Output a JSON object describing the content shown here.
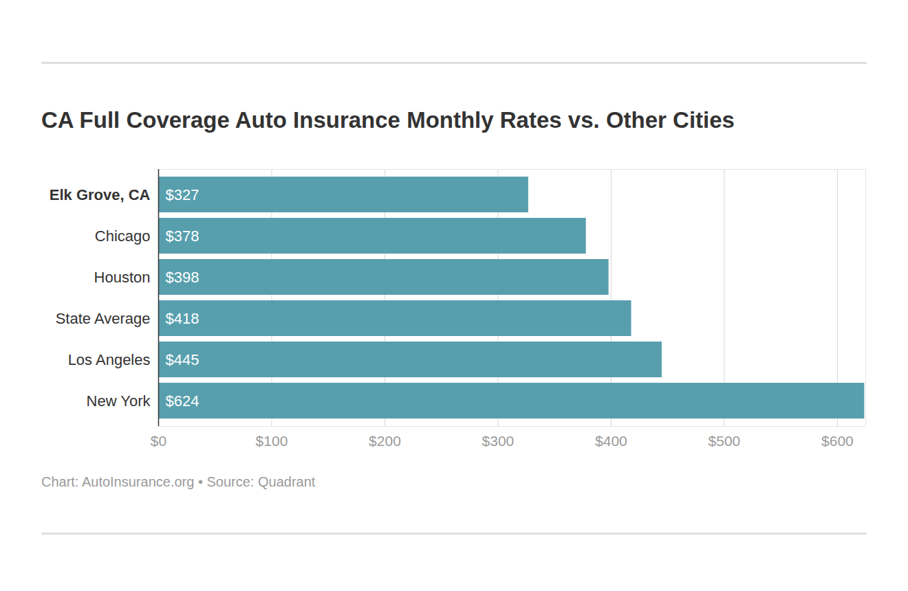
{
  "chart_data": {
    "type": "bar",
    "title": "CA Full Coverage Auto Insurance Monthly Rates vs. Other Cities",
    "caption": "Chart: AutoInsurance.org • Source: Quadrant",
    "orientation": "horizontal",
    "categories": [
      "Elk Grove, CA",
      "Chicago",
      "Houston",
      "State Average",
      "Los Angeles",
      "New York"
    ],
    "values": [
      327,
      378,
      398,
      418,
      445,
      624
    ],
    "value_labels": [
      "$327",
      "$378",
      "$398",
      "$418",
      "$445",
      "$624"
    ],
    "data_labels": true,
    "color": "#589fae",
    "xlim": [
      0,
      625
    ],
    "xticks": [
      {
        "value": 0,
        "label": "$0"
      },
      {
        "value": 100,
        "label": "$100"
      },
      {
        "value": 200,
        "label": "$200"
      },
      {
        "value": 300,
        "label": "$300"
      },
      {
        "value": 400,
        "label": "$400"
      },
      {
        "value": 500,
        "label": "$500"
      },
      {
        "value": 600,
        "label": "$600"
      }
    ],
    "grid": true
  }
}
